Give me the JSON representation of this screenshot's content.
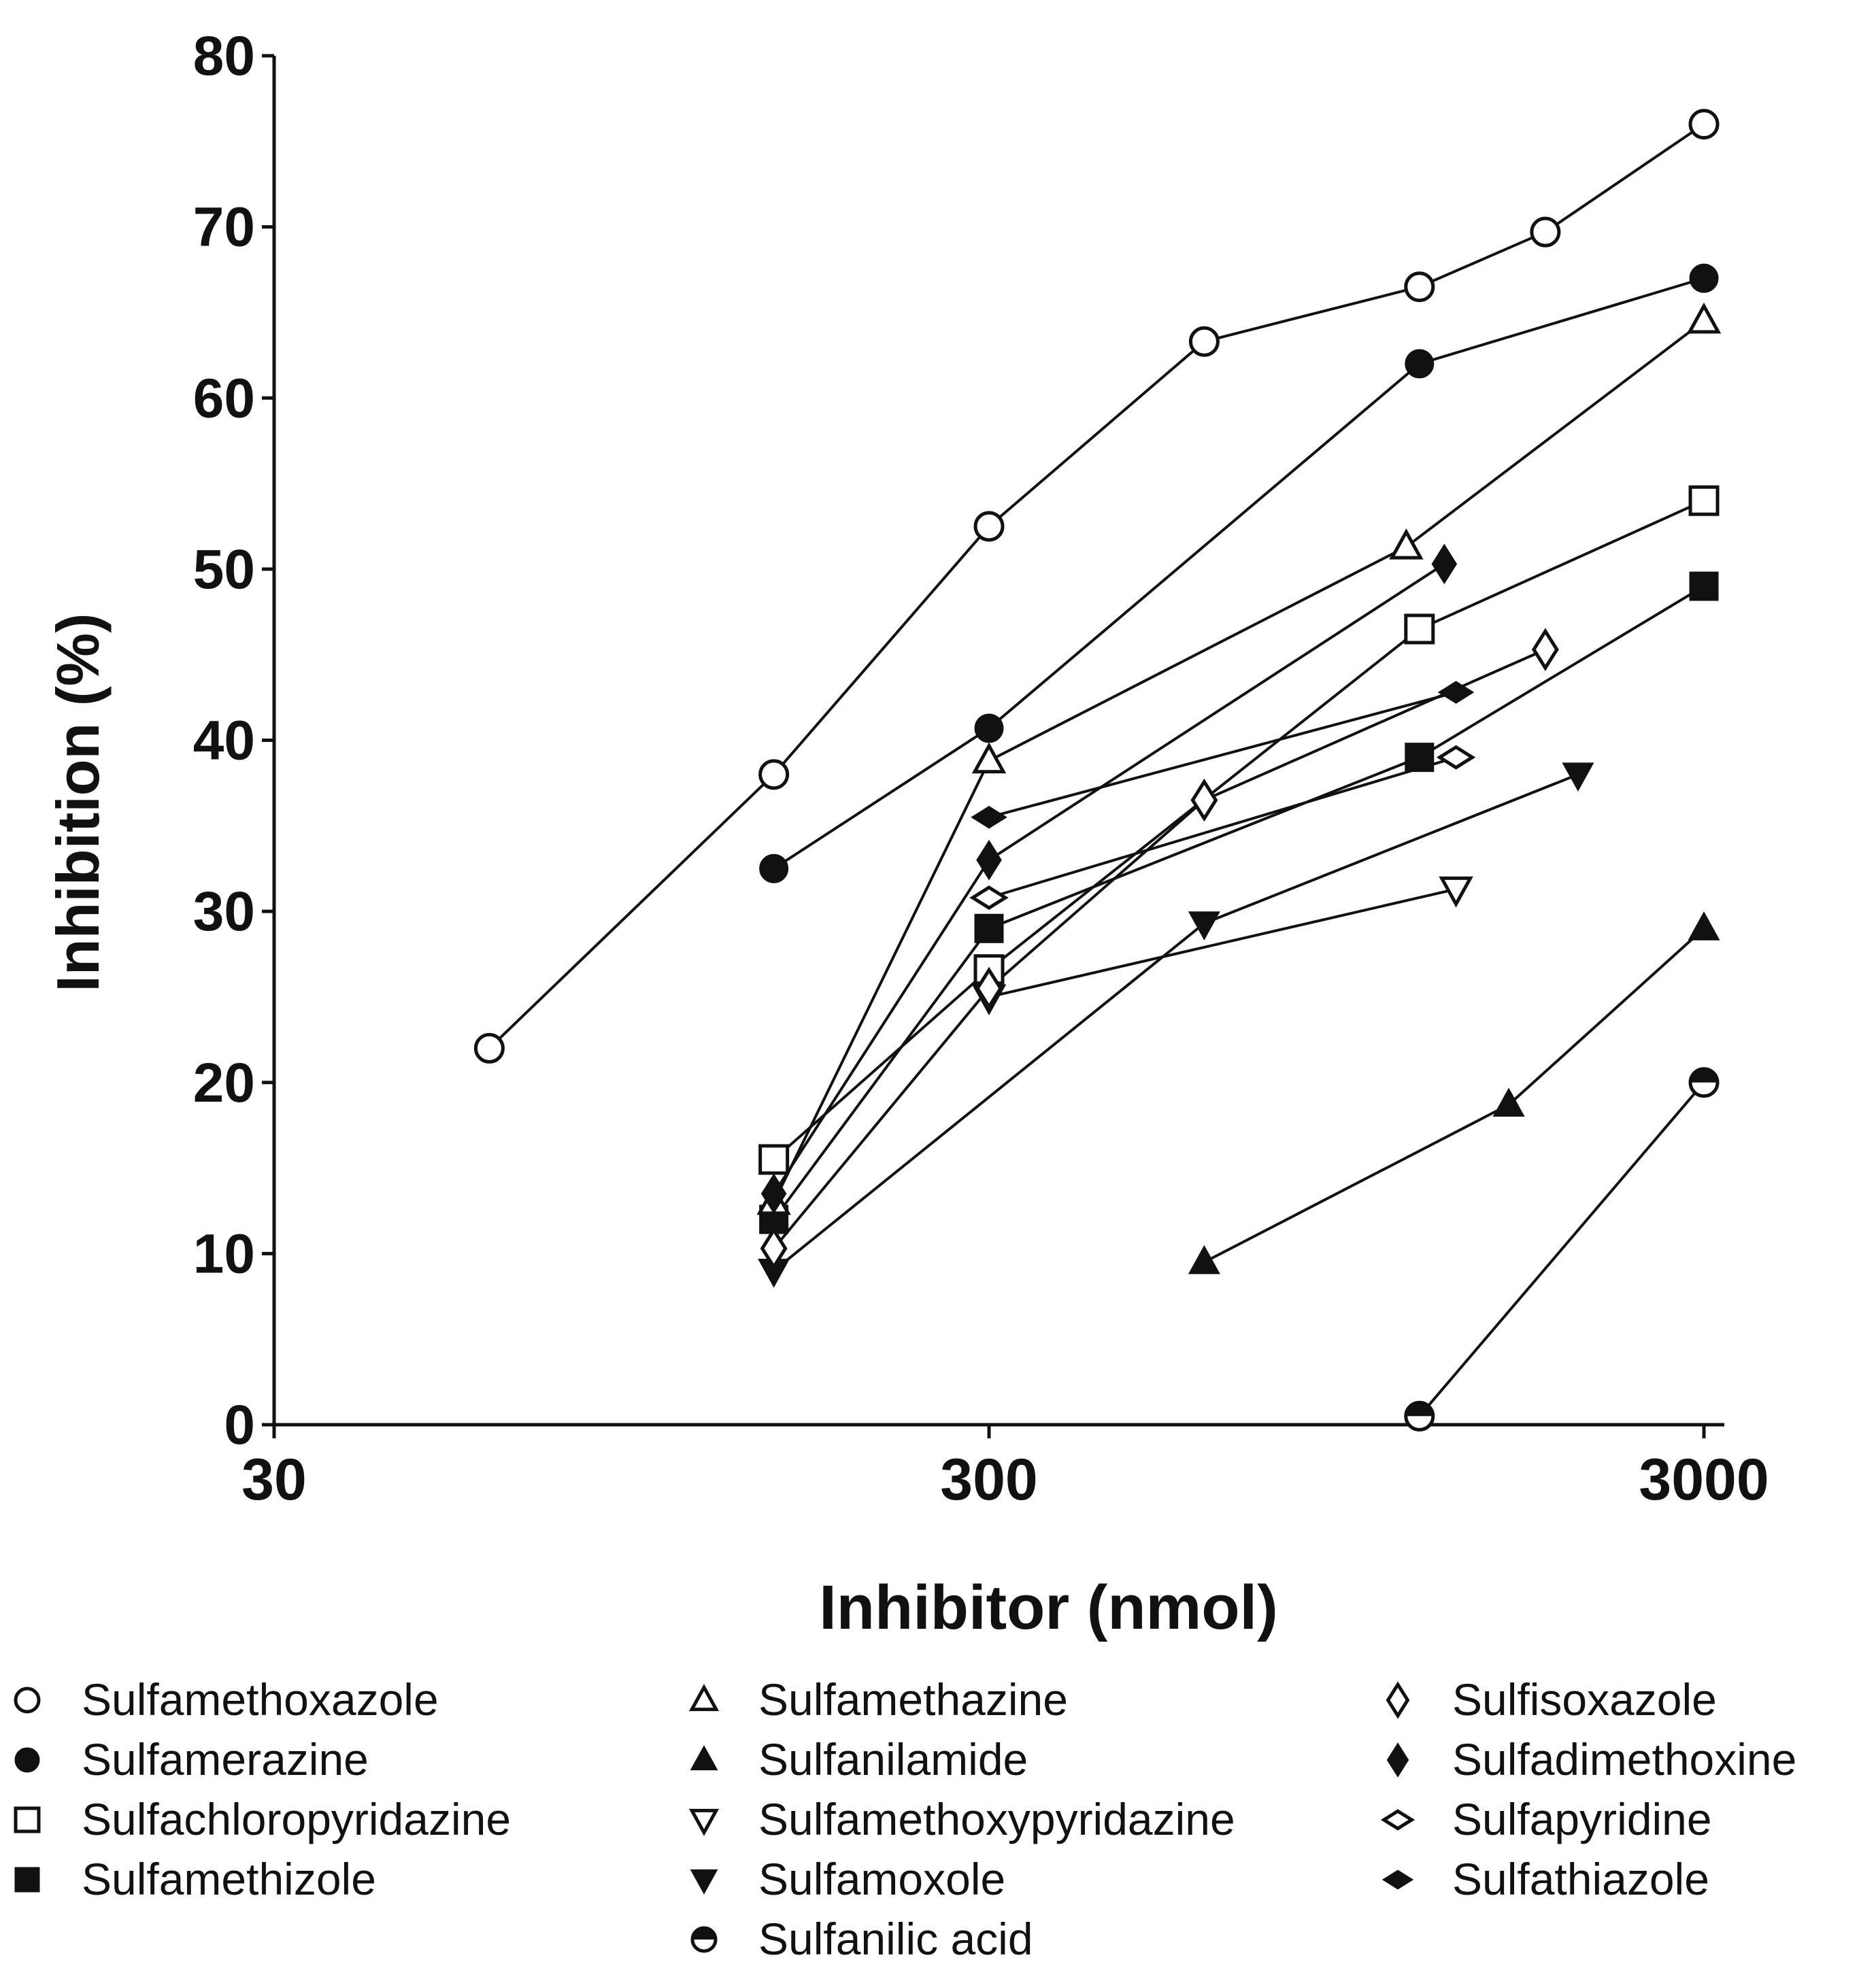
{
  "chart_data": {
    "type": "line",
    "xscale": "log",
    "xlabel": "Inhibitor (nmol)",
    "ylabel": "Inhibition (%)",
    "xlim": [
      30,
      3100
    ],
    "ylim": [
      0,
      80
    ],
    "xticks": [
      30,
      300,
      3000
    ],
    "xtick_labels": [
      "30",
      "300",
      "3000"
    ],
    "yticks": [
      0,
      10,
      20,
      30,
      40,
      50,
      60,
      70,
      80
    ],
    "ytick_labels": [
      "0",
      "10",
      "20",
      "30",
      "40",
      "50",
      "60",
      "70",
      "80"
    ],
    "grid": false,
    "series": [
      {
        "name": "Sulfamethoxazole",
        "marker": "circle-open",
        "x": [
          60,
          150,
          300,
          600,
          1200,
          1800,
          3000
        ],
        "y": [
          22,
          38,
          52.5,
          63.3,
          66.5,
          69.7,
          76
        ]
      },
      {
        "name": "Sulfamerazine",
        "marker": "circle-filled",
        "x": [
          150,
          300,
          1200,
          3000
        ],
        "y": [
          32.5,
          40.7,
          62,
          67
        ]
      },
      {
        "name": "Sulfachloropyridazine",
        "marker": "square-open",
        "x": [
          150,
          300,
          1200,
          3000
        ],
        "y": [
          15.5,
          26.6,
          46.5,
          54
        ]
      },
      {
        "name": "Sulfamethizole",
        "marker": "square-filled",
        "x": [
          150,
          300,
          1200,
          3000
        ],
        "y": [
          12,
          29,
          39,
          49
        ]
      },
      {
        "name": "Sulfamethazine",
        "marker": "triangle-up-open",
        "x": [
          150,
          300,
          1150,
          3000
        ],
        "y": [
          13,
          38.8,
          51.3,
          64.5
        ]
      },
      {
        "name": "Sulfanilamide",
        "marker": "triangle-up-filled",
        "x": [
          600,
          1600,
          3000
        ],
        "y": [
          9.5,
          18.7,
          29
        ]
      },
      {
        "name": "Sulfamethoxypyridazine",
        "marker": "triangle-down-open",
        "x": [
          300,
          1350
        ],
        "y": [
          25,
          31.3
        ]
      },
      {
        "name": "Sulfamoxole",
        "marker": "triangle-down-filled",
        "x": [
          150,
          600,
          2000
        ],
        "y": [
          9,
          29.3,
          38
        ]
      },
      {
        "name": "Sulfanilic acid",
        "marker": "circle-half",
        "x": [
          1200,
          3000
        ],
        "y": [
          0.5,
          20
        ]
      },
      {
        "name": "Sulfisoxazole",
        "marker": "diamond-open",
        "x": [
          150,
          300,
          600,
          1800
        ],
        "y": [
          10.3,
          25.5,
          36.5,
          45.3
        ]
      },
      {
        "name": "Sulfadimethoxine",
        "marker": "diamond-filled",
        "x": [
          150,
          300,
          1300
        ],
        "y": [
          13.5,
          33,
          50.3
        ]
      },
      {
        "name": "Sulfapyridine",
        "marker": "diamond-small-open",
        "x": [
          300,
          1350
        ],
        "y": [
          30.8,
          39
        ]
      },
      {
        "name": "Sulfathiazole",
        "marker": "diamond-small-filled",
        "x": [
          300,
          1350
        ],
        "y": [
          35.5,
          42.8
        ]
      }
    ],
    "legend_placement": "bottom",
    "legend_columns": [
      [
        "Sulfamethoxazole",
        "Sulfamerazine",
        "Sulfachloropyridazine",
        "Sulfamethizole"
      ],
      [
        "Sulfamethazine",
        "Sulfanilamide",
        "Sulfamethoxypyridazine",
        "Sulfamoxole",
        "Sulfanilic acid"
      ],
      [
        "Sulfisoxazole",
        "Sulfadimethoxine",
        "Sulfapyridine",
        "Sulfathiazole"
      ]
    ]
  }
}
